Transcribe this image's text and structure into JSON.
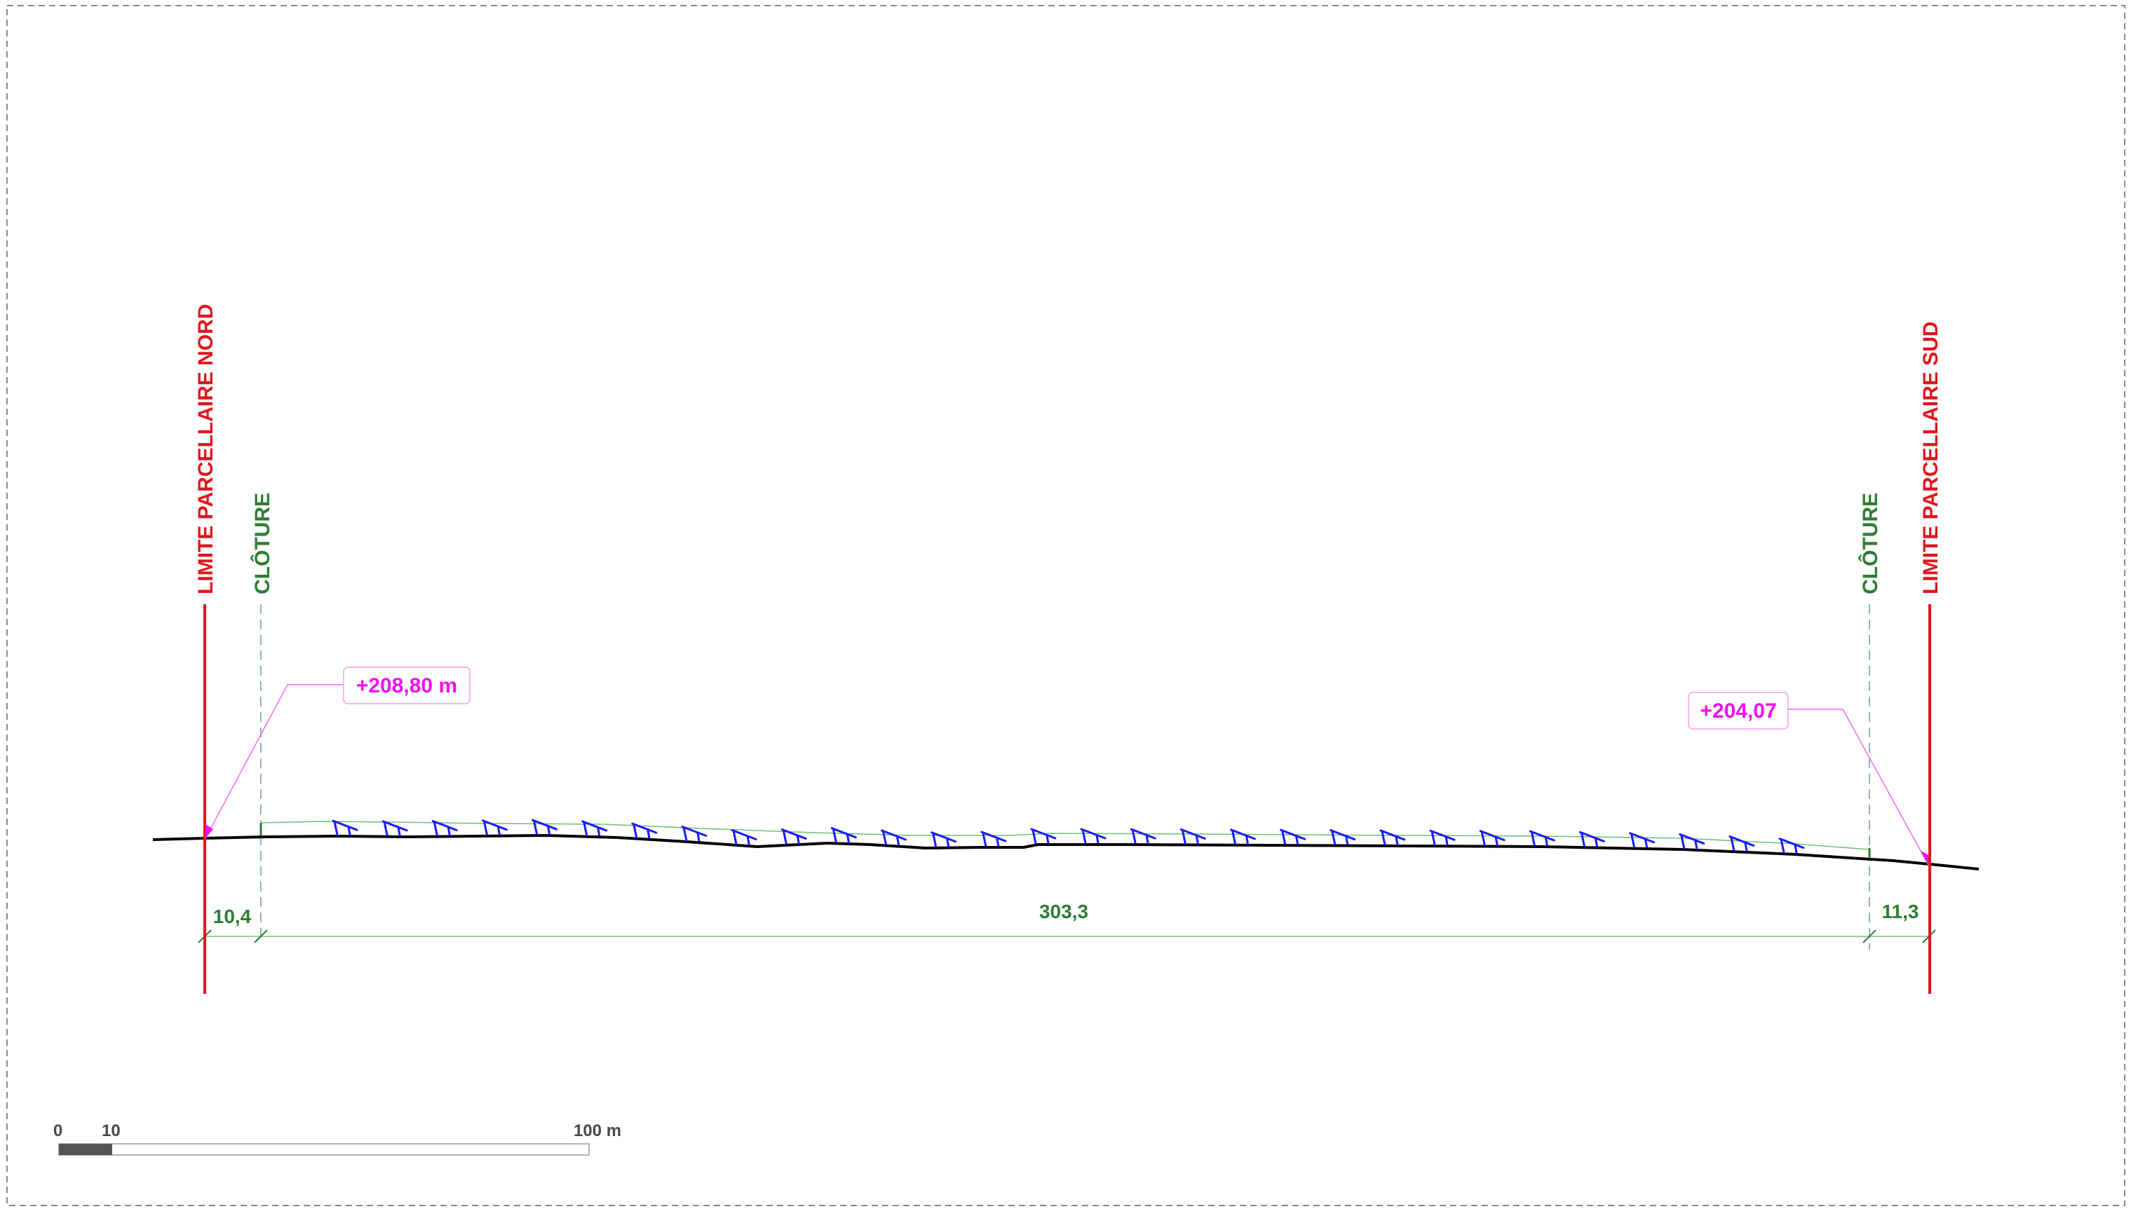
{
  "section": {
    "boundary_north": "LIMITE PARCELLAIRE NORD",
    "boundary_south": "LIMITE PARCELLAIRE SUD",
    "fence_north": "CLÔTURE",
    "fence_south": "CLÔTURE"
  },
  "elevations": {
    "north": "+208,80 m",
    "south": "+204,07"
  },
  "dimensions": {
    "north_offset": "10,4",
    "main_span": "303,3",
    "south_offset": "11,3"
  },
  "scale_bar": {
    "label_zero": "0",
    "label_ten": "10",
    "label_hundred": "100 m"
  },
  "colors": {
    "boundary": "#e0161e",
    "fence": "#2e7d32",
    "elevation": "#f00ff0",
    "panels": "#1a1aff",
    "terrain": "#000000"
  },
  "panel_rows": 30
}
